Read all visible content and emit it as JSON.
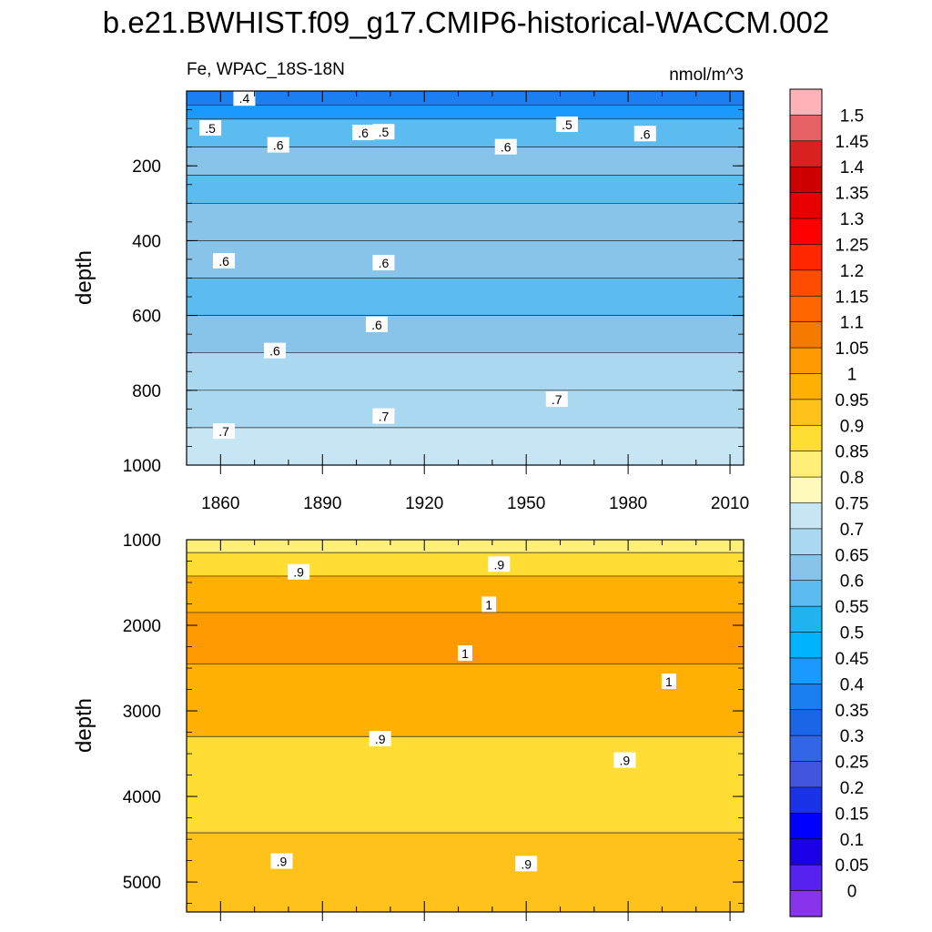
{
  "title": "b.e21.BWHIST.f09_g17.CMIP6-historical-WACCM.002",
  "chart_data": [
    {
      "type": "heatmap",
      "subtitle_left": "Fe, WPAC_18S-18N",
      "units": "nmol/m^3",
      "ylabel": "depth",
      "xlabel": "",
      "xlim": [
        1850,
        2014
      ],
      "ylim": [
        0,
        1000
      ],
      "y_inverted": true,
      "x_ticks": [
        1860,
        1890,
        1920,
        1950,
        1980,
        2010
      ],
      "y_ticks": [
        200,
        400,
        600,
        800,
        1000
      ],
      "depth_levels": [
        {
          "depth": 25,
          "value": 0.37
        },
        {
          "depth": 50,
          "value": 0.42
        },
        {
          "depth": 100,
          "value": 0.55
        },
        {
          "depth": 200,
          "value": 0.62
        },
        {
          "depth": 250,
          "value": 0.58
        },
        {
          "depth": 350,
          "value": 0.63
        },
        {
          "depth": 450,
          "value": 0.6
        },
        {
          "depth": 550,
          "value": 0.58
        },
        {
          "depth": 650,
          "value": 0.62
        },
        {
          "depth": 750,
          "value": 0.66
        },
        {
          "depth": 850,
          "value": 0.69
        },
        {
          "depth": 950,
          "value": 0.74
        }
      ],
      "contour_labels": [
        {
          "text": ".4",
          "year": 1867,
          "depth": 20
        },
        {
          "text": ".5",
          "year": 1857,
          "depth": 100
        },
        {
          "text": ".6",
          "year": 1877,
          "depth": 145
        },
        {
          "text": ".6",
          "year": 1902,
          "depth": 112
        },
        {
          "text": ".5",
          "year": 1908,
          "depth": 110
        },
        {
          "text": ".6",
          "year": 1944,
          "depth": 150
        },
        {
          "text": ".5",
          "year": 1962,
          "depth": 90
        },
        {
          "text": ".6",
          "year": 1985,
          "depth": 115
        },
        {
          "text": ".6",
          "year": 1861,
          "depth": 455
        },
        {
          "text": ".6",
          "year": 1908,
          "depth": 460
        },
        {
          "text": ".6",
          "year": 1906,
          "depth": 625
        },
        {
          "text": ".6",
          "year": 1876,
          "depth": 695
        },
        {
          "text": ".7",
          "year": 1959,
          "depth": 825
        },
        {
          "text": ".7",
          "year": 1908,
          "depth": 870
        },
        {
          "text": ".7",
          "year": 1861,
          "depth": 910
        }
      ]
    },
    {
      "type": "heatmap",
      "ylabel": "depth",
      "xlabel": "",
      "xlim": [
        1850,
        2014
      ],
      "ylim": [
        1000,
        5350
      ],
      "y_inverted": true,
      "x_ticks": [
        1860,
        1890,
        1920,
        1950,
        1980,
        2010
      ],
      "y_ticks": [
        1000,
        2000,
        3000,
        4000,
        5000
      ],
      "depth_levels": [
        {
          "depth": 1050,
          "value": 0.8
        },
        {
          "depth": 1250,
          "value": 0.88
        },
        {
          "depth": 1600,
          "value": 0.96
        },
        {
          "depth": 2100,
          "value": 1.02
        },
        {
          "depth": 2800,
          "value": 0.95
        },
        {
          "depth": 3800,
          "value": 0.88
        },
        {
          "depth": 5050,
          "value": 0.9
        }
      ],
      "contour_labels": [
        {
          "text": ".9",
          "year": 1883,
          "depth": 1380
        },
        {
          "text": ".9",
          "year": 1942,
          "depth": 1290
        },
        {
          "text": "1",
          "year": 1939,
          "depth": 1760
        },
        {
          "text": "1",
          "year": 1932,
          "depth": 2330
        },
        {
          "text": "1",
          "year": 1992,
          "depth": 2660
        },
        {
          "text": ".9",
          "year": 1907,
          "depth": 3330
        },
        {
          "text": ".9",
          "year": 1979,
          "depth": 3580
        },
        {
          "text": ".9",
          "year": 1878,
          "depth": 4760
        },
        {
          "text": ".9",
          "year": 1950,
          "depth": 4790
        }
      ]
    }
  ],
  "colorbar": {
    "levels": [
      "1.5",
      "1.45",
      "1.4",
      "1.35",
      "1.3",
      "1.25",
      "1.2",
      "1.15",
      "1.1",
      "1.05",
      "1",
      "0.95",
      "0.9",
      "0.85",
      "0.8",
      "0.75",
      "0.7",
      "0.65",
      "0.6",
      "0.55",
      "0.5",
      "0.45",
      "0.4",
      "0.35",
      "0.3",
      "0.25",
      "0.2",
      "0.15",
      "0.1",
      "0.05",
      "0"
    ],
    "colors": [
      "#ffb3b8",
      "#e66166",
      "#d92121",
      "#cc0000",
      "#e60000",
      "#ff0000",
      "#ff2600",
      "#ff4d00",
      "#ff6600",
      "#f57a00",
      "#ff9900",
      "#ffb000",
      "#ffc21a",
      "#ffdd33",
      "#ffee77",
      "#fff9bb",
      "#c7e6f5",
      "#a9d8f0",
      "#88c4ea",
      "#5cbcf0",
      "#1fb3f0",
      "#00b3ff",
      "#1a9aff",
      "#1a7ff0",
      "#1a66e6",
      "#3366e6",
      "#4455dd",
      "#1a33e6",
      "#0000ff",
      "#1a00e6",
      "#5522ee",
      "#8833ee"
    ]
  }
}
